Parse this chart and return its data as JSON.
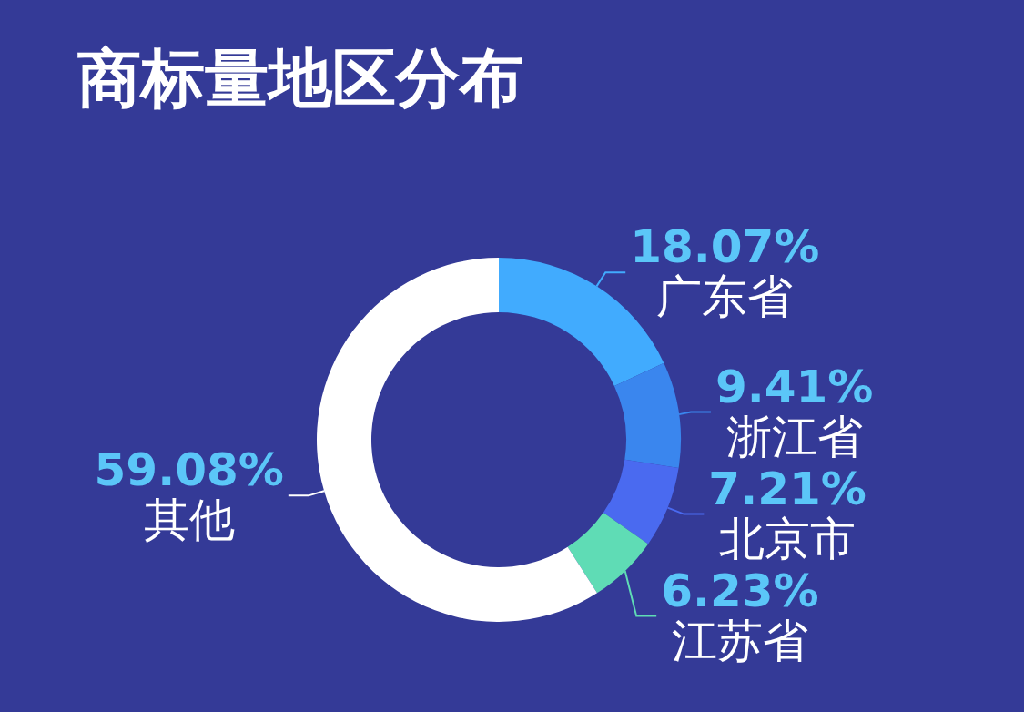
{
  "chart_data": {
    "type": "donut",
    "title": "商标量地区分布",
    "categories": [
      "广东省",
      "浙江省",
      "北京市",
      "江苏省",
      "其他"
    ],
    "values": [
      18.07,
      9.41,
      7.21,
      6.23,
      59.08
    ],
    "colors": [
      "#41abfe",
      "#3a86ee",
      "#4a6af0",
      "#5fdcb5",
      "#ffffff"
    ],
    "value_labels": [
      "18.07%",
      "9.41%",
      "7.21%",
      "6.23%",
      "59.08%"
    ]
  }
}
